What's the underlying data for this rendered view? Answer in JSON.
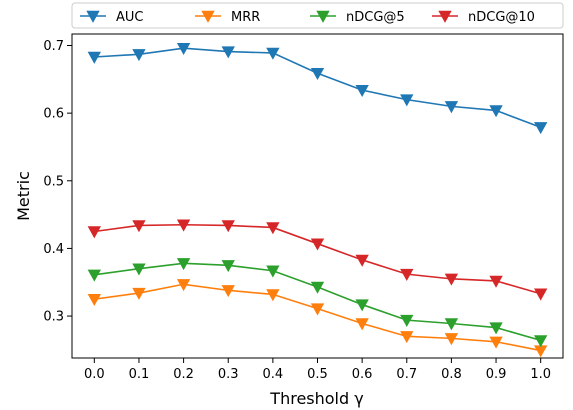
{
  "chart_data": {
    "type": "line",
    "xlabel": "Threshold γ",
    "ylabel": "Metric",
    "x": [
      0.0,
      0.1,
      0.2,
      0.3,
      0.4,
      0.5,
      0.6,
      0.7,
      0.8,
      0.9,
      1.0
    ],
    "x_tick_labels": [
      "0.0",
      "0.1",
      "0.2",
      "0.3",
      "0.4",
      "0.5",
      "0.6",
      "0.7",
      "0.8",
      "0.9",
      "1.0"
    ],
    "y_ticks": [
      0.3,
      0.4,
      0.5,
      0.6,
      0.7
    ],
    "y_tick_labels": [
      "0.3",
      "0.4",
      "0.5",
      "0.6",
      "0.7"
    ],
    "xlim": [
      -0.05,
      1.05
    ],
    "ylim": [
      0.238,
      0.717
    ],
    "grid": false,
    "legend_placement": "top-center",
    "marker": "triangle-down",
    "series": [
      {
        "name": "AUC",
        "color": "#1f77b4",
        "values": [
          0.683,
          0.687,
          0.696,
          0.691,
          0.689,
          0.659,
          0.634,
          0.62,
          0.61,
          0.604,
          0.579
        ]
      },
      {
        "name": "MRR",
        "color": "#ff7f0e",
        "values": [
          0.325,
          0.334,
          0.347,
          0.338,
          0.332,
          0.311,
          0.289,
          0.27,
          0.267,
          0.262,
          0.249
        ]
      },
      {
        "name": "nDCG@5",
        "color": "#2ca02c",
        "values": [
          0.361,
          0.37,
          0.378,
          0.375,
          0.367,
          0.343,
          0.317,
          0.294,
          0.289,
          0.283,
          0.264
        ]
      },
      {
        "name": "nDCG@10",
        "color": "#d62728",
        "values": [
          0.425,
          0.434,
          0.435,
          0.434,
          0.431,
          0.407,
          0.383,
          0.362,
          0.355,
          0.352,
          0.333
        ]
      }
    ]
  }
}
